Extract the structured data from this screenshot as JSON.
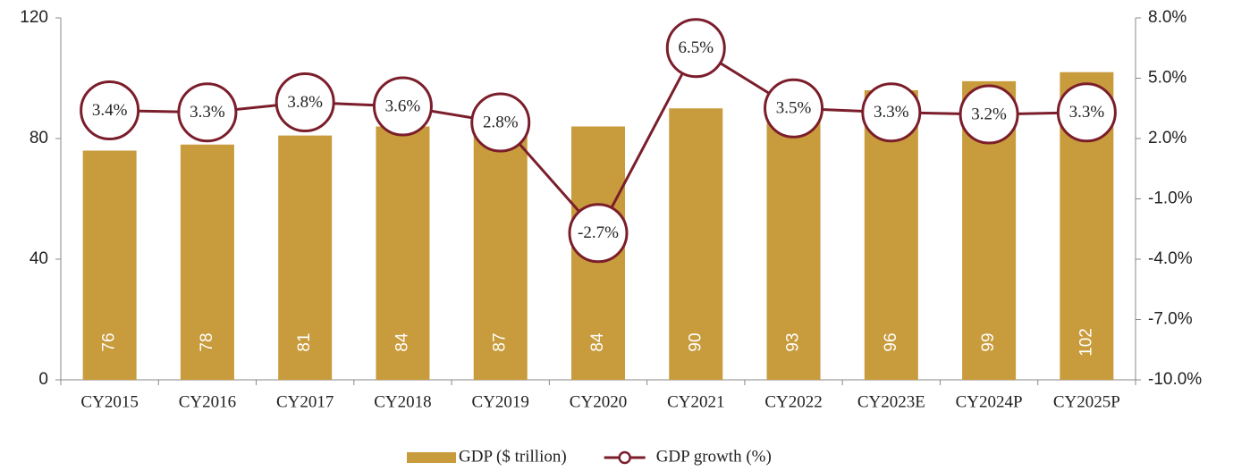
{
  "chart_data": {
    "type": "bar",
    "categories": [
      "CY2015",
      "CY2016",
      "CY2017",
      "CY2018",
      "CY2019",
      "CY2020",
      "CY2021",
      "CY2022",
      "CY2023E",
      "CY2024P",
      "CY2025P"
    ],
    "series": [
      {
        "name": "GDP ($ trillion)",
        "type": "bar",
        "color": "#c89b3c",
        "values": [
          76,
          78,
          81,
          84,
          87,
          84,
          90,
          93,
          96,
          99,
          102
        ]
      },
      {
        "name": "GDP growth (%)",
        "type": "line",
        "axis": "y2",
        "color": "#7b1e2b",
        "values": [
          3.4,
          3.3,
          3.8,
          3.6,
          2.8,
          -2.7,
          6.5,
          3.5,
          3.3,
          3.2,
          3.3
        ],
        "value_labels": [
          "3.4%",
          "3.3%",
          "3.8%",
          "3.6%",
          "2.8%",
          "-2.7%",
          "6.5%",
          "3.5%",
          "3.3%",
          "3.2%",
          "3.3%"
        ]
      }
    ],
    "ylim": [
      0,
      120
    ],
    "yticks": [
      0,
      40,
      80,
      120
    ],
    "y2lim": [
      -10,
      8
    ],
    "y2ticks": [
      {
        "value": -10,
        "label": "-10.0%"
      },
      {
        "value": -7,
        "label": "-7.0%"
      },
      {
        "value": -4,
        "label": "-4.0%"
      },
      {
        "value": -1,
        "label": "-1.0%"
      },
      {
        "value": 2,
        "label": "2.0%"
      },
      {
        "value": 5,
        "label": "5.0%"
      },
      {
        "value": 8,
        "label": "8.0%"
      }
    ],
    "legend": "bottom"
  }
}
